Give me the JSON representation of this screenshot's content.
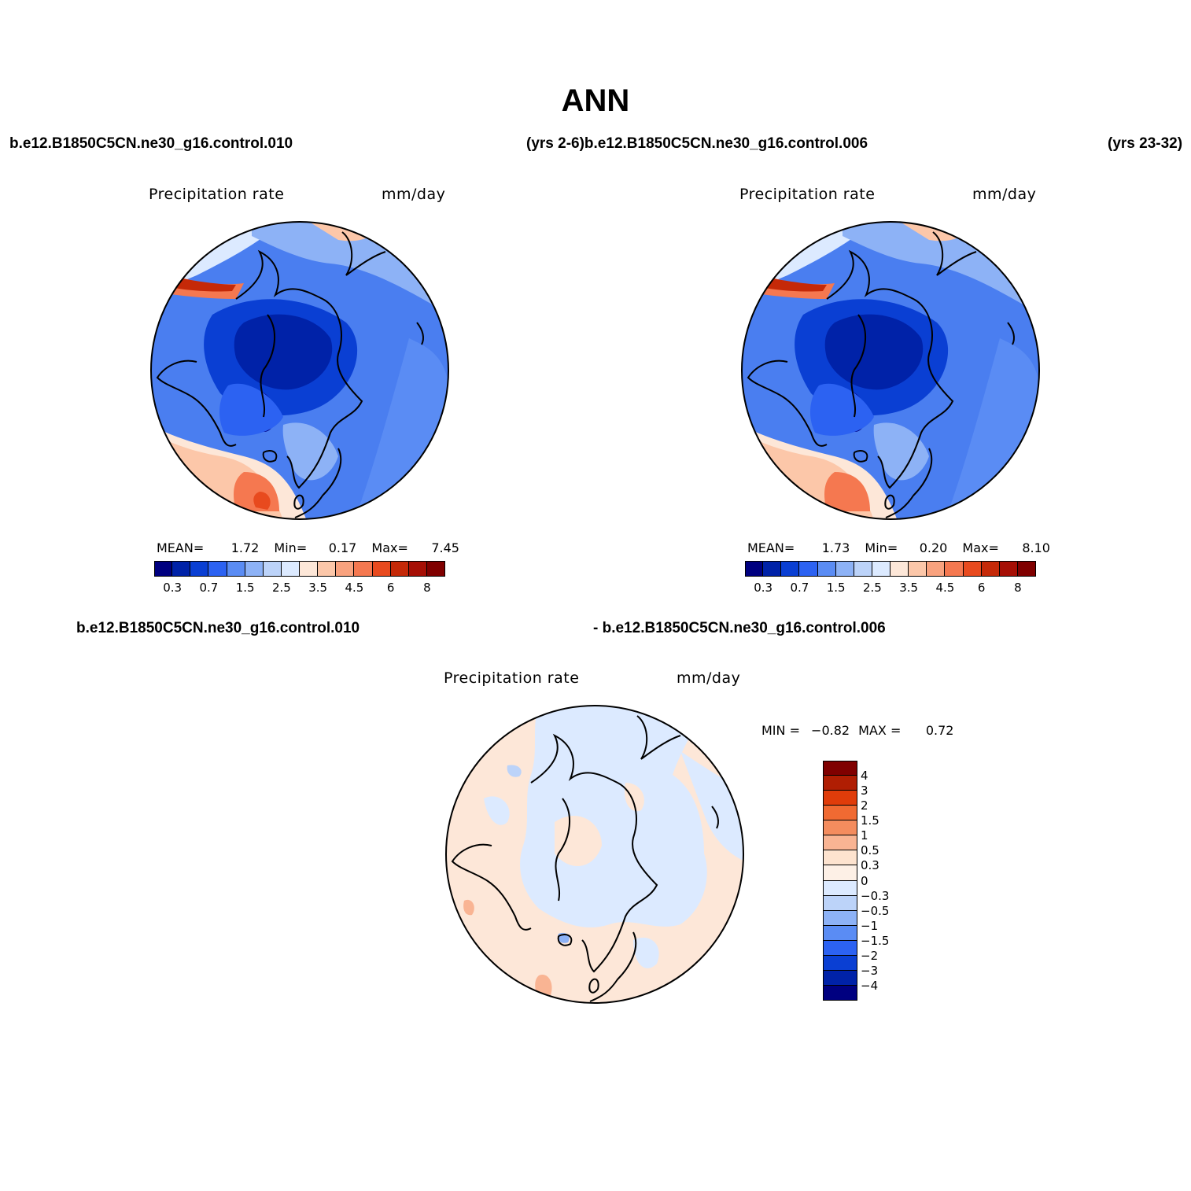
{
  "title": "ANN",
  "header": {
    "case_top_left": "b.e12.B1850C5CN.ne30_g16.control.010",
    "case_top_mid": "(yrs 2-6)b.e12.B1850C5CN.ne30_g16.control.006",
    "case_top_right": "(yrs 23-32)",
    "diff_left": "b.e12.B1850C5CN.ne30_g16.control.010",
    "diff_right": "- b.e12.B1850C5CN.ne30_g16.control.006"
  },
  "panels": [
    {
      "variable": "Precipitation  rate",
      "units": "mm/day",
      "stats": {
        "mean_label": "MEAN=",
        "mean": "1.72",
        "min_label": "Min=",
        "min": "0.17",
        "max_label": "Max=",
        "max": "7.45"
      }
    },
    {
      "variable": "Precipitation  rate",
      "units": "mm/day",
      "stats": {
        "mean_label": "MEAN=",
        "mean": "1.73",
        "min_label": "Min=",
        "min": "0.20",
        "max_label": "Max=",
        "max": "8.10"
      }
    },
    {
      "variable": "Precipitation  rate",
      "units": "mm/day",
      "stats": {
        "min_label": "MIN =",
        "min": "−0.82",
        "max_label": "MAX =",
        "max": "0.72"
      }
    }
  ],
  "colorbar_abs": {
    "colors": [
      "#000080",
      "#0022a8",
      "#0a3fd3",
      "#2c62f2",
      "#5a8cf4",
      "#8db2f6",
      "#bcd3f9",
      "#dceaff",
      "#fde7d8",
      "#fcc7a9",
      "#f9a27e",
      "#f57850",
      "#e84a1e",
      "#c52908",
      "#a60f05",
      "#800000"
    ],
    "labels": [
      "0.3",
      "0.7",
      "1.5",
      "2.5",
      "3.5",
      "4.5",
      "6",
      "8"
    ]
  },
  "colorbar_diff": {
    "colors": [
      "#800000",
      "#b01e03",
      "#e03c0a",
      "#f06a32",
      "#f48c5e",
      "#f9b493",
      "#fde3cf",
      "#fdf0e6",
      "#dceaff",
      "#bcd3f9",
      "#8db2f6",
      "#5a8cf4",
      "#2c62f2",
      "#0a3fd3",
      "#0022a8",
      "#000080"
    ],
    "labels": [
      "4",
      "3",
      "2",
      "1.5",
      "1",
      "0.5",
      "0.3",
      "0",
      "−0.3",
      "−0.5",
      "−1",
      "−1.5",
      "−2",
      "−3",
      "−4"
    ]
  }
}
